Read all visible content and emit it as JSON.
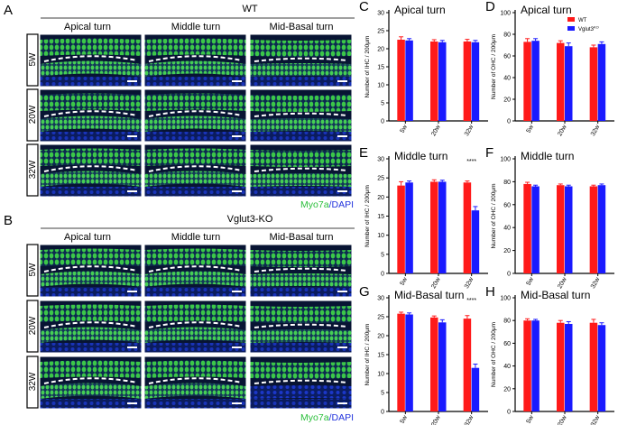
{
  "panel_letters": {
    "A": "A",
    "B": "B",
    "C": "C",
    "D": "D",
    "E": "E",
    "F": "F",
    "G": "G",
    "H": "H"
  },
  "images": {
    "wt_title": "WT",
    "ko_title": "Vglut3-KO",
    "columns": [
      "Apical turn",
      "Middle turn",
      "Mid-Basal turn"
    ],
    "rows": [
      "5W",
      "20W",
      "32W"
    ],
    "stain_myo": "Myo7a",
    "stain_sep": "/",
    "stain_dapi": "DAPI"
  },
  "colors": {
    "wt": "#ff1a1a",
    "ko": "#1a1aff",
    "myo": "#2bbf3b",
    "dapi": "#2233dd",
    "tissue_bg": "#0a1640",
    "cell": "#35c93c"
  },
  "chart_data": [
    {
      "id": "C",
      "type": "bar",
      "title": "Apical turn",
      "ylabel": "Number of IHC / 200μm",
      "categories": [
        "5w",
        "20w",
        "32w"
      ],
      "ylim": [
        0,
        30
      ],
      "yticks": [
        0,
        5,
        10,
        15,
        20,
        25,
        30
      ],
      "series": [
        {
          "name": "WT",
          "values": [
            22.5,
            22.0,
            22.0
          ],
          "errors": [
            0.8,
            0.5,
            0.6
          ]
        },
        {
          "name": "VglutKO",
          "values": [
            22.3,
            21.8,
            21.8
          ],
          "errors": [
            0.5,
            0.5,
            0.5
          ]
        }
      ],
      "annotations": []
    },
    {
      "id": "D",
      "type": "bar",
      "title": "Apical turn",
      "ylabel": "Number of OHC / 200μm",
      "categories": [
        "5w",
        "20w",
        "32w"
      ],
      "ylim": [
        0,
        100
      ],
      "yticks": [
        0,
        20,
        40,
        60,
        80,
        100
      ],
      "series": [
        {
          "name": "WT",
          "values": [
            73,
            72,
            68
          ],
          "errors": [
            3,
            2,
            2
          ]
        },
        {
          "name": "VglutKO",
          "values": [
            74,
            69,
            71
          ],
          "errors": [
            2,
            3,
            2
          ]
        }
      ],
      "legend": {
        "wt_label": "WT",
        "ko_label": "Vglut3",
        "ko_sup": "KO"
      },
      "annotations": []
    },
    {
      "id": "E",
      "type": "bar",
      "title": "Middle turn",
      "ylabel": "Number of IHC / 200μm",
      "categories": [
        "5w",
        "20w",
        "32w"
      ],
      "ylim": [
        0,
        30
      ],
      "yticks": [
        0,
        5,
        10,
        15,
        20,
        25,
        30
      ],
      "series": [
        {
          "name": "WT",
          "values": [
            23.0,
            24.0,
            23.8
          ],
          "errors": [
            1.0,
            0.5,
            0.4
          ]
        },
        {
          "name": "VglutKO",
          "values": [
            23.8,
            24.0,
            16.5
          ],
          "errors": [
            0.4,
            0.4,
            1.0
          ]
        }
      ],
      "annotations": [
        {
          "category_index": 2,
          "text": "****"
        }
      ]
    },
    {
      "id": "F",
      "type": "bar",
      "title": "Middle turn",
      "ylabel": "Number of OHC / 200μm",
      "categories": [
        "5w",
        "20w",
        "32w"
      ],
      "ylim": [
        0,
        100
      ],
      "yticks": [
        0,
        20,
        40,
        60,
        80,
        100
      ],
      "series": [
        {
          "name": "WT",
          "values": [
            78,
            77,
            76
          ],
          "errors": [
            1.5,
            1,
            1
          ]
        },
        {
          "name": "VglutKO",
          "values": [
            76,
            76,
            77
          ],
          "errors": [
            1,
            1,
            1
          ]
        }
      ],
      "annotations": []
    },
    {
      "id": "G",
      "type": "bar",
      "title": "Mid-Basal turn",
      "ylabel": "Number of IHC / 200μm",
      "categories": [
        "5w",
        "20w",
        "32w"
      ],
      "ylim": [
        0,
        30
      ],
      "yticks": [
        0,
        5,
        10,
        15,
        20,
        25,
        30
      ],
      "series": [
        {
          "name": "WT",
          "values": [
            25.8,
            24.8,
            24.5
          ],
          "errors": [
            0.4,
            0.4,
            0.8
          ]
        },
        {
          "name": "VglutKO",
          "values": [
            25.6,
            23.5,
            11.5
          ],
          "errors": [
            0.4,
            0.7,
            1.0
          ]
        }
      ],
      "annotations": [
        {
          "category_index": 2,
          "text": "****"
        }
      ]
    },
    {
      "id": "H",
      "type": "bar",
      "title": "Mid-Basal turn",
      "ylabel": "Number of OHC / 200μm",
      "categories": [
        "5w",
        "20w",
        "32w"
      ],
      "ylim": [
        0,
        100
      ],
      "yticks": [
        0,
        20,
        40,
        60,
        80,
        100
      ],
      "series": [
        {
          "name": "WT",
          "values": [
            80,
            78,
            78
          ],
          "errors": [
            1.5,
            2,
            3
          ]
        },
        {
          "name": "VglutKO",
          "values": [
            80,
            77,
            76
          ],
          "errors": [
            1,
            2,
            2
          ]
        }
      ],
      "annotations": []
    }
  ]
}
